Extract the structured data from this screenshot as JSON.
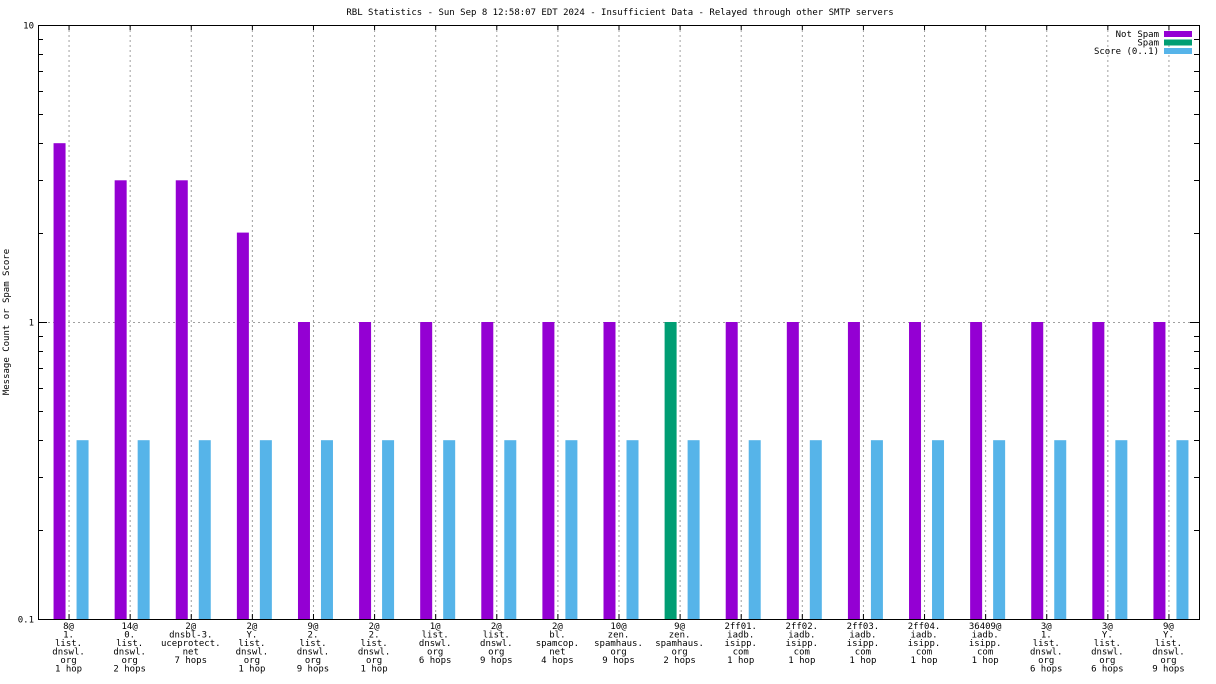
{
  "chart_data": {
    "type": "bar",
    "title": "RBL Statistics - Sun Sep  8 12:58:07 EDT 2024 - Insufficient Data - Relayed through other SMTP servers",
    "ylabel": "Message Count or Spam Score",
    "xlabel": "",
    "yscale": "log",
    "ylim": [
      0.1,
      10
    ],
    "yticks": [
      {
        "value": 0.1,
        "label": "0.1"
      },
      {
        "value": 1,
        "label": "1"
      },
      {
        "value": 10,
        "label": "10"
      }
    ],
    "legend_position": "top-right",
    "grid": true,
    "categories": [
      [
        "8@",
        "1.",
        "list.",
        "dnswl.",
        "org",
        "1 hop"
      ],
      [
        "14@",
        "0.",
        "list.",
        "dnswl.",
        "org",
        "2 hops"
      ],
      [
        "2@",
        "dnsbl-3.",
        "uceprotect.",
        "net",
        "7 hops"
      ],
      [
        "2@",
        "Y.",
        "list.",
        "dnswl.",
        "org",
        "1 hop"
      ],
      [
        "9@",
        "2.",
        "list.",
        "dnswl.",
        "org",
        "9 hops"
      ],
      [
        "2@",
        "2.",
        "list.",
        "dnswl.",
        "org",
        "1 hop"
      ],
      [
        "1@",
        "list.",
        "dnswl.",
        "org",
        "6 hops"
      ],
      [
        "2@",
        "list.",
        "dnswl.",
        "org",
        "9 hops"
      ],
      [
        "2@",
        "bl.",
        "spamcop.",
        "net",
        "4 hops"
      ],
      [
        "10@",
        "zen.",
        "spamhaus.",
        "org",
        "9 hops"
      ],
      [
        "9@",
        "zen.",
        "spamhaus.",
        "org",
        "2 hops"
      ],
      [
        "2ff01.",
        "iadb.",
        "isipp.",
        "com",
        "1 hop"
      ],
      [
        "2ff02.",
        "iadb.",
        "isipp.",
        "com",
        "1 hop"
      ],
      [
        "2ff03.",
        "iadb.",
        "isipp.",
        "com",
        "1 hop"
      ],
      [
        "2ff04.",
        "iadb.",
        "isipp.",
        "com",
        "1 hop"
      ],
      [
        "36409@",
        "iadb.",
        "isipp.",
        "com",
        "1 hop"
      ],
      [
        "3@",
        "1.",
        "list.",
        "dnswl.",
        "org",
        "6 hops"
      ],
      [
        "3@",
        "Y.",
        "list.",
        "dnswl.",
        "org",
        "6 hops"
      ],
      [
        "9@",
        "Y.",
        "list.",
        "dnswl.",
        "org",
        "9 hops"
      ]
    ],
    "series": [
      {
        "name": "Not Spam",
        "color": "#9400d3",
        "values": [
          4,
          3,
          3,
          2,
          1,
          1,
          1,
          1,
          1,
          1,
          0,
          1,
          1,
          1,
          1,
          1,
          1,
          1,
          1
        ]
      },
      {
        "name": "Spam",
        "color": "#009e73",
        "values": [
          0,
          0,
          0,
          0,
          0,
          0,
          0,
          0,
          0,
          0,
          1,
          0,
          0,
          0,
          0,
          0,
          0,
          0,
          0
        ]
      },
      {
        "name": "Score (0..1)",
        "color": "#56b4e9",
        "values": [
          0.4,
          0.4,
          0.4,
          0.4,
          0.4,
          0.4,
          0.4,
          0.4,
          0.4,
          0.4,
          0.4,
          0.4,
          0.4,
          0.4,
          0.4,
          0.4,
          0.4,
          0.4,
          0.4
        ]
      }
    ]
  }
}
